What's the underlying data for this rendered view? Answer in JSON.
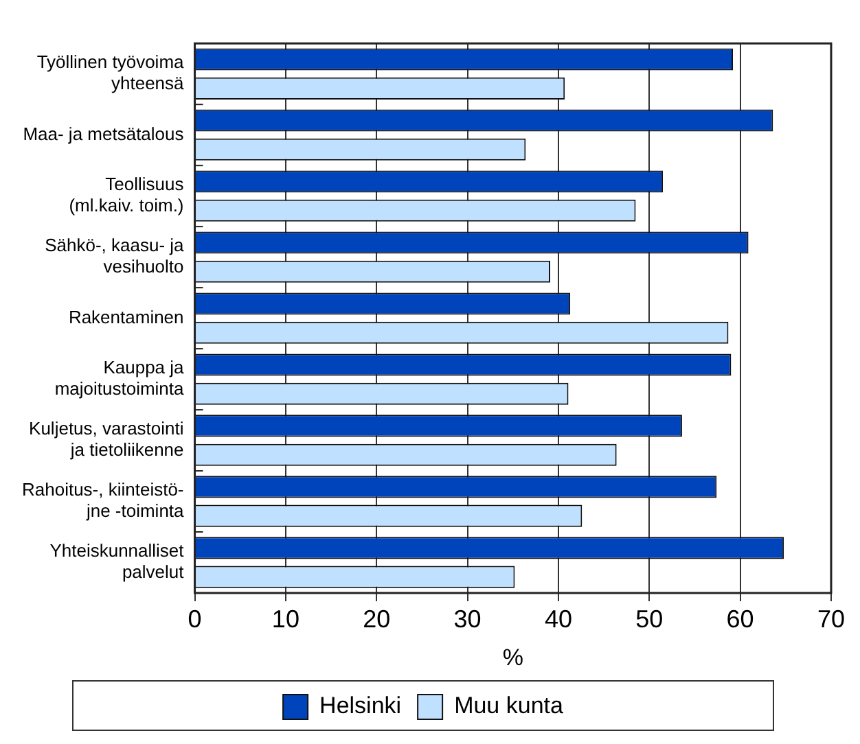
{
  "chart_data": {
    "type": "bar",
    "orientation": "horizontal",
    "xlabel": "%",
    "categories": [
      "Työllinen työvoima\nyhteensä",
      "Maa- ja metsätalous",
      "Teollisuus\n(ml.kaiv. toim.)",
      "Sähkö-, kaasu- ja\nvesihuolto",
      "Rakentaminen",
      "Kauppa ja\nmajoitustoiminta",
      "Kuljetus, varastointi\nja tietoliikenne",
      "Rahoitus-, kiinteistö-\njne -toiminta",
      "Yhteiskunnalliset\npalvelut"
    ],
    "series": [
      {
        "name": "Helsinki",
        "color": "#0044bb",
        "values": [
          59.2,
          63.6,
          51.5,
          60.9,
          41.3,
          59.0,
          53.6,
          57.4,
          64.8
        ]
      },
      {
        "name": "Muu kunta",
        "color": "#c0e0ff",
        "values": [
          40.7,
          36.4,
          48.5,
          39.1,
          58.7,
          41.1,
          46.4,
          42.6,
          35.2
        ]
      }
    ],
    "xlim": [
      0,
      70
    ],
    "xticks": [
      0,
      10,
      20,
      30,
      40,
      50,
      60,
      70
    ],
    "grid": "x",
    "legend": "bottom"
  }
}
